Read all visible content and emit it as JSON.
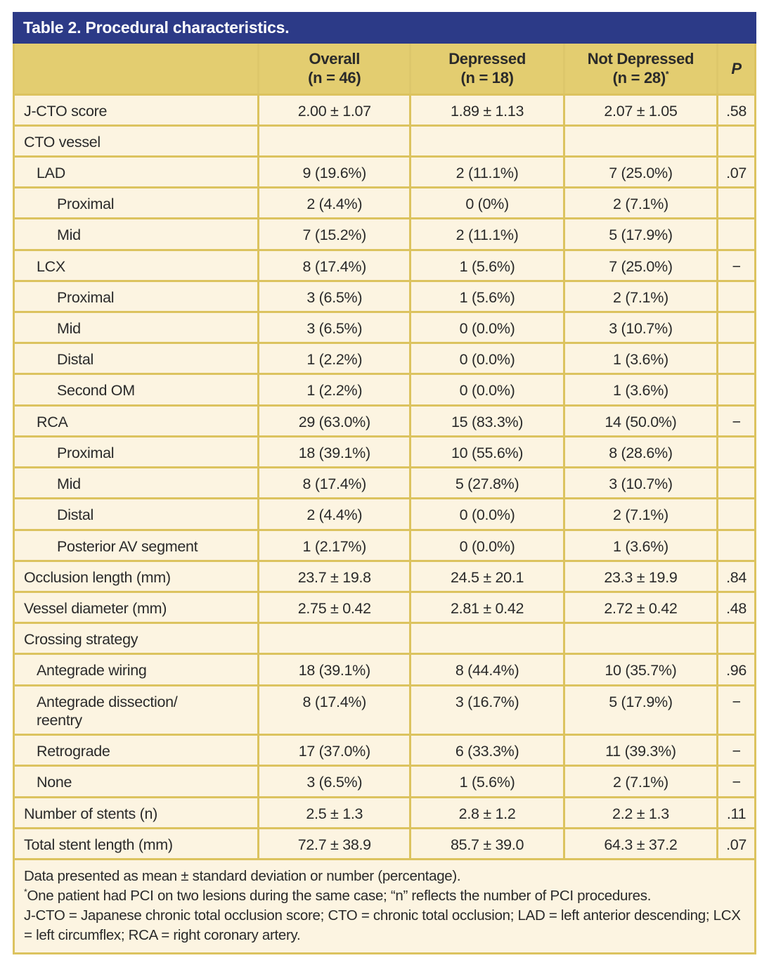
{
  "title": "Table 2. Procedural characteristics.",
  "colors": {
    "title_bar_bg": "#2c3a87",
    "title_text": "#ffffff",
    "header_bg": "#e3cd70",
    "body_bg": "#fcf4e1",
    "grid_border": "#dcc35f",
    "text": "#2a2a2a"
  },
  "header": {
    "columns": [
      {
        "line1": "",
        "line2": ""
      },
      {
        "line1": "Overall",
        "line2": "(n = 46)"
      },
      {
        "line1": "Depressed",
        "line2": "(n = 18)"
      },
      {
        "line1": "Not Depressed",
        "line2": "(n = 28)",
        "sup": "*"
      },
      {
        "line1": "P"
      }
    ]
  },
  "rows": [
    {
      "label": "J-CTO score",
      "indent": 0,
      "overall": "2.00 ± 1.07",
      "depressed": "1.89 ± 1.13",
      "not_depressed": "2.07 ± 1.05",
      "p": ".58"
    },
    {
      "label": "CTO vessel",
      "indent": 0,
      "overall": "",
      "depressed": "",
      "not_depressed": "",
      "p": ""
    },
    {
      "label": "LAD",
      "indent": 1,
      "overall": "9 (19.6%)",
      "depressed": "2 (11.1%)",
      "not_depressed": "7 (25.0%)",
      "p": ".07"
    },
    {
      "label": "Proximal",
      "indent": 2,
      "overall": "2 (4.4%)",
      "depressed": "0 (0%)",
      "not_depressed": "2 (7.1%)",
      "p": ""
    },
    {
      "label": "Mid",
      "indent": 2,
      "overall": "7 (15.2%)",
      "depressed": "2 (11.1%)",
      "not_depressed": "5 (17.9%)",
      "p": ""
    },
    {
      "label": "LCX",
      "indent": 1,
      "overall": "8 (17.4%)",
      "depressed": "1 (5.6%)",
      "not_depressed": "7 (25.0%)",
      "p": "−"
    },
    {
      "label": "Proximal",
      "indent": 2,
      "overall": "3 (6.5%)",
      "depressed": "1 (5.6%)",
      "not_depressed": "2 (7.1%)",
      "p": ""
    },
    {
      "label": "Mid",
      "indent": 2,
      "overall": "3 (6.5%)",
      "depressed": "0 (0.0%)",
      "not_depressed": "3 (10.7%)",
      "p": ""
    },
    {
      "label": "Distal",
      "indent": 2,
      "overall": "1 (2.2%)",
      "depressed": "0 (0.0%)",
      "not_depressed": "1 (3.6%)",
      "p": ""
    },
    {
      "label": "Second OM",
      "indent": 2,
      "overall": "1 (2.2%)",
      "depressed": "0 (0.0%)",
      "not_depressed": "1 (3.6%)",
      "p": ""
    },
    {
      "label": "RCA",
      "indent": 1,
      "overall": "29 (63.0%)",
      "depressed": "15 (83.3%)",
      "not_depressed": "14 (50.0%)",
      "p": "−"
    },
    {
      "label": "Proximal",
      "indent": 2,
      "overall": "18 (39.1%)",
      "depressed": "10 (55.6%)",
      "not_depressed": "8 (28.6%)",
      "p": ""
    },
    {
      "label": "Mid",
      "indent": 2,
      "overall": "8 (17.4%)",
      "depressed": "5 (27.8%)",
      "not_depressed": "3 (10.7%)",
      "p": ""
    },
    {
      "label": "Distal",
      "indent": 2,
      "overall": "2 (4.4%)",
      "depressed": "0 (0.0%)",
      "not_depressed": "2 (7.1%)",
      "p": ""
    },
    {
      "label": "Posterior AV segment",
      "indent": 2,
      "overall": "1 (2.17%)",
      "depressed": "0 (0.0%)",
      "not_depressed": "1 (3.6%)",
      "p": ""
    },
    {
      "label": "Occlusion length (mm)",
      "indent": 0,
      "overall": "23.7 ± 19.8",
      "depressed": "24.5 ± 20.1",
      "not_depressed": "23.3 ± 19.9",
      "p": ".84"
    },
    {
      "label": "Vessel diameter (mm)",
      "indent": 0,
      "overall": "2.75 ± 0.42",
      "depressed": "2.81 ± 0.42",
      "not_depressed": "2.72 ± 0.42",
      "p": ".48"
    },
    {
      "label": "Crossing strategy",
      "indent": 0,
      "overall": "",
      "depressed": "",
      "not_depressed": "",
      "p": ""
    },
    {
      "label": "Antegrade wiring",
      "indent": 1,
      "overall": "18 (39.1%)",
      "depressed": "8 (44.4%)",
      "not_depressed": "10 (35.7%)",
      "p": ".96"
    },
    {
      "label": "Antegrade dissection/\nreentry",
      "indent": 1,
      "overall": "8 (17.4%)",
      "depressed": "3 (16.7%)",
      "not_depressed": "5 (17.9%)",
      "p": "−"
    },
    {
      "label": "Retrograde",
      "indent": 1,
      "overall": "17 (37.0%)",
      "depressed": "6 (33.3%)",
      "not_depressed": "11 (39.3%)",
      "p": "−"
    },
    {
      "label": "None",
      "indent": 1,
      "overall": "3 (6.5%)",
      "depressed": "1 (5.6%)",
      "not_depressed": "2 (7.1%)",
      "p": "−"
    },
    {
      "label": "Number of stents (n)",
      "indent": 0,
      "overall": "2.5 ± 1.3",
      "depressed": "2.8 ± 1.2",
      "not_depressed": "2.2 ± 1.3",
      "p": ".11"
    },
    {
      "label": "Total stent length (mm)",
      "indent": 0,
      "overall": "72.7 ± 38.9",
      "depressed": "85.7 ± 39.0",
      "not_depressed": "64.3 ± 37.2",
      "p": ".07"
    }
  ],
  "footnotes": [
    {
      "sup": "",
      "text": "Data presented as mean ± standard deviation or number (percentage)."
    },
    {
      "sup": "*",
      "text": "One patient had PCI on two lesions during the same case; “n” reflects the number of PCI procedures."
    },
    {
      "sup": "",
      "text": "J-CTO = Japanese chronic total occlusion score; CTO = chronic total occlusion; LAD = left anterior descending;  LCX = left circumflex; RCA = right coronary artery."
    }
  ]
}
